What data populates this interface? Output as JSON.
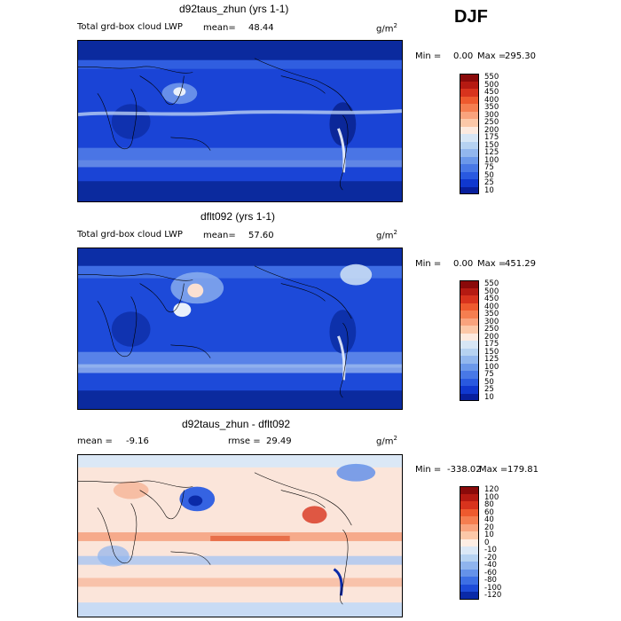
{
  "season": "DJF",
  "panels": [
    {
      "title": "d92taus_zhun (yrs 1-1)",
      "left_label": "Total grd-box cloud LWP",
      "mean_label": "mean=",
      "mean_value": "48.44",
      "units": "g/m",
      "units_sup": "2",
      "min_label": "Min =",
      "min_value": "0.00",
      "max_label": "Max =",
      "max_value": "295.30",
      "colorbar": [
        "550",
        "500",
        "450",
        "400",
        "350",
        "300",
        "250",
        "200",
        "175",
        "150",
        "125",
        "100",
        "75",
        "50",
        "25",
        "10"
      ],
      "colors": [
        "#8a0a0a",
        "#b51a12",
        "#d8331d",
        "#ee5a2e",
        "#f57e50",
        "#f9a37d",
        "#fcc8a8",
        "#fdeadf",
        "#d7e6f5",
        "#b6d2f1",
        "#92b7ee",
        "#6b98ea",
        "#4878e6",
        "#2959e0",
        "#1038cf",
        "#081f9c"
      ]
    },
    {
      "title": "dflt092 (yrs 1-1)",
      "left_label": "Total grd-box cloud LWP",
      "mean_label": "mean=",
      "mean_value": "57.60",
      "units": "g/m",
      "units_sup": "2",
      "min_label": "Min =",
      "min_value": "0.00",
      "max_label": "Max =",
      "max_value": "451.29",
      "colorbar": [
        "550",
        "500",
        "450",
        "400",
        "350",
        "300",
        "250",
        "200",
        "175",
        "150",
        "125",
        "100",
        "75",
        "50",
        "25",
        "10"
      ],
      "colors": [
        "#8a0a0a",
        "#b51a12",
        "#d8331d",
        "#ee5a2e",
        "#f57e50",
        "#f9a37d",
        "#fcc8a8",
        "#fdeadf",
        "#d7e6f5",
        "#b6d2f1",
        "#92b7ee",
        "#6b98ea",
        "#4878e6",
        "#2959e0",
        "#1038cf",
        "#081f9c"
      ]
    },
    {
      "title": "d92taus_zhun - dflt092",
      "left_label": "mean =",
      "mean_value": "-9.16",
      "rmse_label": "rmse =",
      "rmse_value": "29.49",
      "units": "g/m",
      "units_sup": "2",
      "min_label": "Min =",
      "min_value": "-338.02",
      "max_label": "Max =",
      "max_value": "179.81",
      "colorbar": [
        "120",
        "100",
        "80",
        "60",
        "40",
        "20",
        "10",
        "0",
        "-10",
        "-20",
        "-40",
        "-60",
        "-80",
        "-100",
        "-120"
      ],
      "colors": [
        "#8a0a0a",
        "#b51a12",
        "#d8331d",
        "#ee5a2e",
        "#f57e50",
        "#f9a37d",
        "#fcc8a8",
        "#fdeee4",
        "#dbe8f6",
        "#b6d2f1",
        "#8fb4ee",
        "#6592e9",
        "#3d6fe4",
        "#1d4bd8",
        "#0a2aa8",
        "#061a80"
      ]
    }
  ]
}
